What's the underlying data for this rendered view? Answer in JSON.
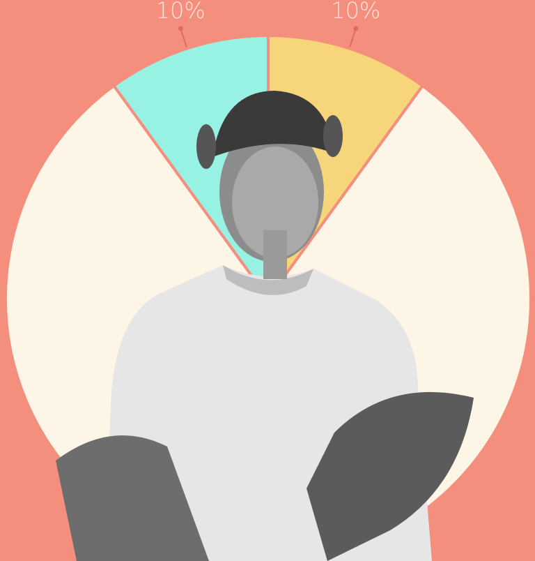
{
  "chart_data": {
    "type": "pie",
    "values": [
      10,
      10,
      80
    ],
    "value_labels": [
      "10%",
      "10%",
      null
    ],
    "colors": [
      "#98f2e4",
      "#f7d57a",
      "#fdf5e6"
    ],
    "start_angle": -36
  }
}
